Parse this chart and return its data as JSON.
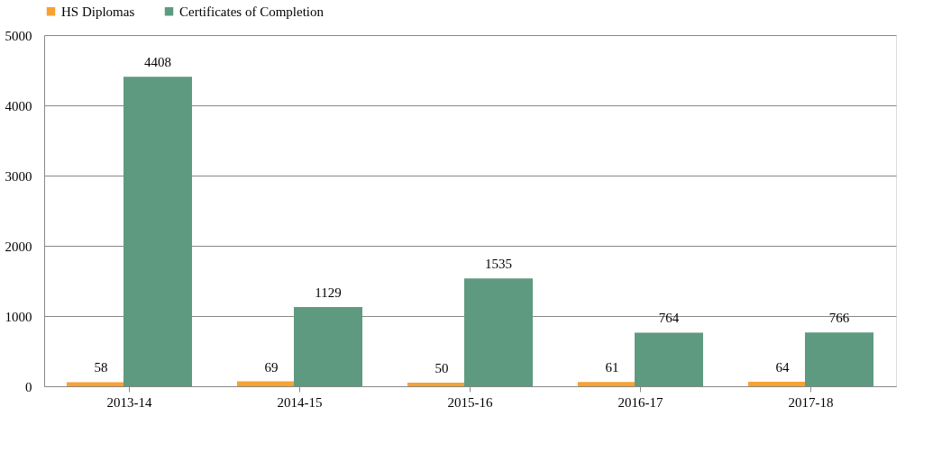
{
  "chart_data": {
    "type": "bar",
    "categories": [
      "2013-14",
      "2014-15",
      "2015-16",
      "2016-17",
      "2017-18"
    ],
    "series": [
      {
        "name": "HS Diplomas",
        "color": "#f7a233",
        "values": [
          58,
          69,
          50,
          61,
          64
        ]
      },
      {
        "name": "Certificates of Completion",
        "color": "#5e9a80",
        "values": [
          4408,
          1129,
          1535,
          764,
          766
        ]
      }
    ],
    "ylim": [
      0,
      5000
    ],
    "yticks": [
      0,
      1000,
      2000,
      3000,
      4000,
      5000
    ],
    "grid": "y",
    "legend": "top",
    "data_labels": true
  }
}
